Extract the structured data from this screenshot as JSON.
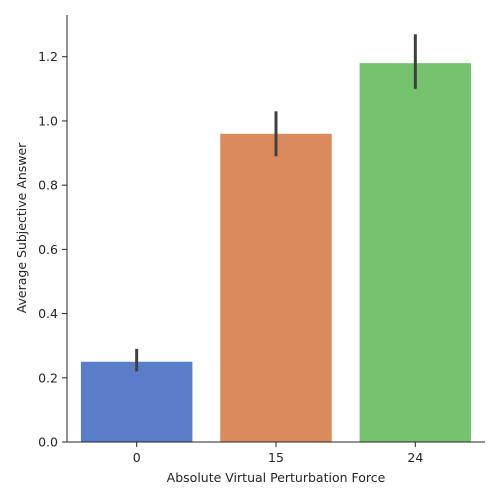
{
  "chart_data": {
    "type": "bar",
    "title": "",
    "xlabel": "Absolute Virtual Perturbation Force",
    "ylabel": "Average Subjective Answer",
    "categories": [
      "0",
      "15",
      "24"
    ],
    "values": [
      0.25,
      0.96,
      1.18
    ],
    "error_low": [
      0.22,
      0.89,
      1.1
    ],
    "error_high": [
      0.29,
      1.03,
      1.27
    ],
    "ylim": [
      0.0,
      1.33
    ],
    "yticks": [
      0.0,
      0.2,
      0.4,
      0.6,
      0.8,
      1.0,
      1.2
    ],
    "ytick_labels": [
      "0.0",
      "0.2",
      "0.4",
      "0.6",
      "0.8",
      "1.0",
      "1.2"
    ],
    "colors": [
      "#5a7dca",
      "#db8a5e",
      "#75c36f"
    ],
    "errorbar_color": "#3f3f3f",
    "grid": false,
    "legend": "none"
  }
}
